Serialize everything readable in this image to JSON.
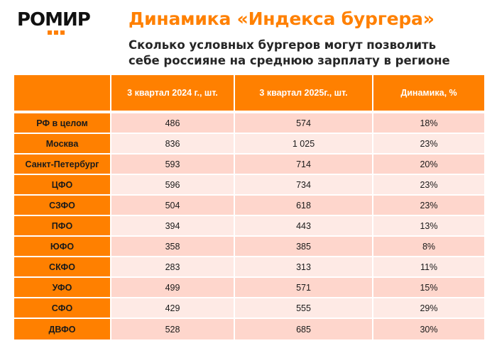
{
  "logo": {
    "text": "РОМИР",
    "accent_color": "#ff8000"
  },
  "header": {
    "title": "Динамика «Индекса бургера»",
    "subtitle_line1": "Сколько условных бургеров могут позволить",
    "subtitle_line2": "себе россияне на среднюю зарплату в регионе"
  },
  "colors": {
    "brand_orange": "#ff8000",
    "row_dark": "#fed6cc",
    "row_light": "#feeae5"
  },
  "table": {
    "columns": [
      "",
      "3 квартал 2024 г., шт.",
      "3 квартал 2025г., шт.",
      "Динамика, %"
    ],
    "rows": [
      {
        "region": "РФ в целом",
        "q3_2024": "486",
        "q3_2025": "574",
        "change": "18%"
      },
      {
        "region": "Москва",
        "q3_2024": "836",
        "q3_2025": "1 025",
        "change": "23%"
      },
      {
        "region": "Санкт-Петербург",
        "q3_2024": "593",
        "q3_2025": "714",
        "change": "20%"
      },
      {
        "region": "ЦФО",
        "q3_2024": "596",
        "q3_2025": "734",
        "change": "23%"
      },
      {
        "region": "СЗФО",
        "q3_2024": "504",
        "q3_2025": "618",
        "change": "23%"
      },
      {
        "region": "ПФО",
        "q3_2024": "394",
        "q3_2025": "443",
        "change": "13%"
      },
      {
        "region": "ЮФО",
        "q3_2024": "358",
        "q3_2025": "385",
        "change": "8%"
      },
      {
        "region": "СКФО",
        "q3_2024": "283",
        "q3_2025": "313",
        "change": "11%"
      },
      {
        "region": "УФО",
        "q3_2024": "499",
        "q3_2025": "571",
        "change": "15%"
      },
      {
        "region": "СФО",
        "q3_2024": "429",
        "q3_2025": "555",
        "change": "29%"
      },
      {
        "region": "ДВФО",
        "q3_2024": "528",
        "q3_2025": "685",
        "change": "30%"
      }
    ]
  }
}
